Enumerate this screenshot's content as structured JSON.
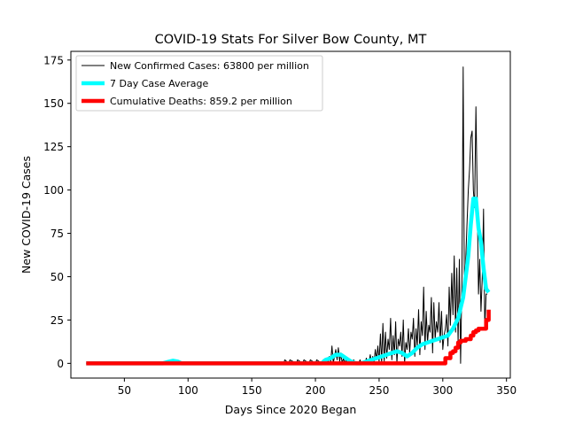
{
  "chart_data": {
    "type": "line",
    "title": "COVID-19 Stats For Silver Bow County, MT",
    "xlabel": "Days Since 2020 Began",
    "ylabel": "New COVID-19 Cases",
    "xlim": [
      8,
      353
    ],
    "ylim": [
      -8.5,
      180
    ],
    "xticks": [
      50,
      100,
      150,
      200,
      250,
      300,
      350
    ],
    "yticks": [
      0,
      25,
      50,
      75,
      100,
      125,
      150,
      175
    ],
    "grid": false,
    "legend_position": "top-left",
    "series": [
      {
        "name": "New Confirmed Cases: 63800 per million",
        "color": "#000000",
        "line_width": 1,
        "x": [
          20,
          100,
          175,
          176,
          179,
          180,
          185,
          186,
          190,
          191,
          195,
          196,
          200,
          201,
          205,
          206,
          208,
          209,
          210,
          211,
          212,
          213,
          214,
          215,
          216,
          217,
          218,
          219,
          220,
          221,
          222,
          223,
          224,
          225,
          226,
          227,
          228,
          229,
          230,
          231,
          232,
          233,
          234,
          235,
          236,
          237,
          238,
          239,
          240,
          241,
          242,
          243,
          244,
          245,
          246,
          247,
          248,
          249,
          250,
          251,
          252,
          253,
          254,
          255,
          256,
          257,
          258,
          259,
          260,
          261,
          262,
          263,
          264,
          265,
          266,
          267,
          268,
          269,
          270,
          271,
          272,
          273,
          274,
          275,
          276,
          277,
          278,
          279,
          280,
          281,
          282,
          283,
          284,
          285,
          286,
          287,
          288,
          289,
          290,
          291,
          292,
          293,
          294,
          295,
          296,
          297,
          298,
          299,
          300,
          301,
          302,
          303,
          304,
          305,
          306,
          307,
          308,
          309,
          310,
          311,
          312,
          313,
          314,
          315,
          316,
          317,
          318,
          319,
          320,
          321,
          322,
          323,
          324,
          325,
          326,
          327,
          328,
          329,
          330,
          331,
          332,
          333,
          334,
          335
        ],
        "y": [
          0,
          0,
          0,
          2,
          0,
          2,
          0,
          2,
          0,
          2,
          0,
          2,
          0,
          2,
          0,
          2,
          0,
          3,
          0,
          4,
          1,
          10,
          0,
          4,
          8,
          2,
          9,
          1,
          6,
          0,
          3,
          0,
          2,
          0,
          0,
          1,
          0,
          0,
          2,
          0,
          1,
          0,
          0,
          2,
          0,
          1,
          0,
          0,
          3,
          0,
          0,
          5,
          0,
          4,
          0,
          8,
          2,
          10,
          1,
          17,
          0,
          23,
          1,
          18,
          3,
          14,
          8,
          26,
          2,
          16,
          5,
          24,
          0,
          14,
          10,
          18,
          4,
          25,
          0,
          12,
          8,
          20,
          6,
          18,
          14,
          26,
          4,
          20,
          10,
          31,
          5,
          24,
          16,
          44,
          8,
          30,
          12,
          22,
          18,
          38,
          6,
          35,
          14,
          24,
          18,
          35,
          12,
          30,
          8,
          16,
          20,
          28,
          10,
          44,
          22,
          52,
          28,
          62,
          18,
          55,
          12,
          60,
          0,
          48,
          171,
          40,
          60,
          80,
          100,
          112,
          130,
          134,
          100,
          90,
          148,
          98,
          40,
          60,
          30,
          50,
          89,
          20,
          40,
          40
        ],
        "draw_style": "line"
      },
      {
        "name": "7 Day Case Average",
        "color": "#00ffff",
        "line_width": 4.5,
        "x": [
          20,
          80,
          85,
          88,
          92,
          95,
          100,
          205,
          208,
          212,
          216,
          220,
          224,
          228,
          232,
          236,
          240,
          244,
          248,
          252,
          256,
          260,
          264,
          268,
          272,
          276,
          280,
          284,
          288,
          292,
          296,
          300,
          304,
          308,
          312,
          316,
          320,
          322,
          324,
          326,
          328,
          330,
          332,
          334,
          336
        ],
        "y": [
          0,
          0,
          1,
          1.5,
          1,
          0,
          0,
          0,
          2,
          3,
          5,
          5,
          3,
          1,
          0,
          0,
          1,
          2,
          3,
          4,
          5,
          6,
          7,
          6,
          4,
          6,
          9,
          11,
          12,
          13,
          14,
          15,
          16,
          20,
          26,
          38,
          62,
          80,
          95,
          95,
          78,
          70,
          55,
          43,
          41
        ],
        "draw_style": "line"
      },
      {
        "name": "Cumulative Deaths: 859.2 per million",
        "color": "#ff0000",
        "line_width": 4.5,
        "x": [
          20,
          300,
          302,
          304,
          306,
          308,
          310,
          312,
          314,
          316,
          318,
          320,
          322,
          324,
          326,
          328,
          330,
          332,
          334,
          336
        ],
        "y": [
          0,
          0,
          3,
          3,
          6,
          7,
          9,
          12,
          13,
          13,
          14,
          14,
          16,
          18,
          19,
          20,
          20,
          20,
          25,
          31
        ],
        "draw_style": "steps"
      }
    ]
  }
}
